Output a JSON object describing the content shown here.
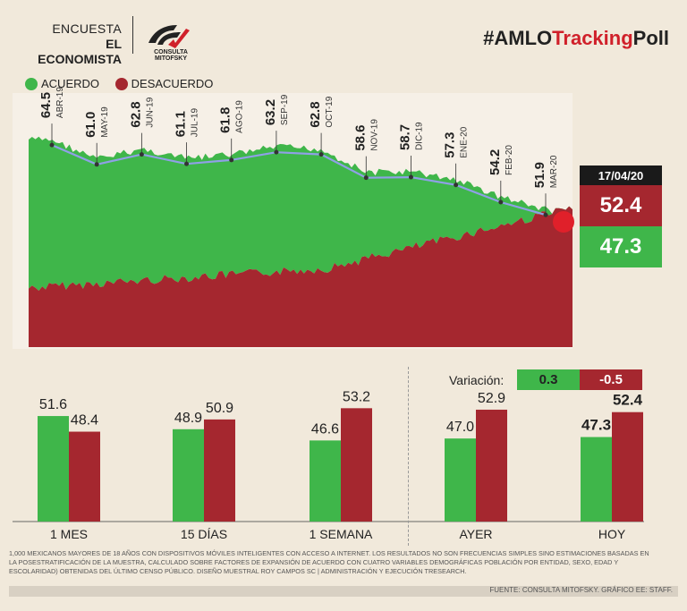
{
  "header": {
    "brand_line1": "ENCUESTA",
    "brand_line2": "EL ECONOMISTA",
    "logo_caption": "CONSULTA MITOFSKY",
    "hashtag_prefix": "#AMLO",
    "hashtag_highlight": "Tracking",
    "hashtag_suffix": "Poll"
  },
  "legend": {
    "acuerdo": "ACUERDO",
    "desacuerdo": "DESACUERDO"
  },
  "colors": {
    "green": "#3fb64a",
    "red": "#a5272f",
    "blue_line": "#8fa0e6",
    "background": "#f1e9db"
  },
  "current": {
    "date": "17/04/20",
    "desacuerdo": "52.4",
    "acuerdo": "47.3"
  },
  "variation": {
    "label": "Variación:",
    "acuerdo": "0.3",
    "desacuerdo": "-0.5"
  },
  "chart_data": [
    {
      "type": "area",
      "title": "AMLO Tracking Poll",
      "series": [
        {
          "name": "ACUERDO",
          "color": "#3fb64a"
        },
        {
          "name": "DESACUERDO",
          "color": "#a5272f"
        }
      ],
      "monthly_points": [
        {
          "label": "ABR-19",
          "value": 64.5
        },
        {
          "label": "MAY-19",
          "value": 61.0
        },
        {
          "label": "JUN-19",
          "value": 62.8
        },
        {
          "label": "JUL-19",
          "value": 61.1
        },
        {
          "label": "AGO-19",
          "value": 61.8
        },
        {
          "label": "SEP-19",
          "value": 63.2
        },
        {
          "label": "OCT-19",
          "value": 62.8
        },
        {
          "label": "NOV-19",
          "value": 58.6
        },
        {
          "label": "DIC-19",
          "value": 58.7
        },
        {
          "label": "ENE-20",
          "value": 57.3
        },
        {
          "label": "FEB-20",
          "value": 54.2
        },
        {
          "label": "MAR-20",
          "value": 51.9
        }
      ],
      "ylim": [
        30,
        70
      ]
    },
    {
      "type": "bar",
      "categories": [
        "1 MES",
        "15 DÍAS",
        "1 SEMANA",
        "AYER",
        "HOY"
      ],
      "series": [
        {
          "name": "ACUERDO",
          "values": [
            51.6,
            48.9,
            46.6,
            47.0,
            47.3
          ],
          "labels": [
            "51.6",
            "48.9",
            "46.6",
            "47.0",
            "47.3"
          ]
        },
        {
          "name": "DESACUERDO",
          "values": [
            48.4,
            50.9,
            53.2,
            52.9,
            52.4
          ],
          "labels": [
            "48.4",
            "50.9",
            "53.2",
            "52.9",
            "52.4"
          ]
        }
      ],
      "ylim": [
        30,
        60
      ]
    }
  ],
  "footnote": "1,000 MEXICANOS MAYORES DE 18 AÑOS CON DISPOSITIVOS MÓVILES INTELIGENTES CON ACCESO A INTERNET. LOS RESULTADOS NO SON FRECUENCIAS SIMPLES SINO ESTIMACIONES BASADAS EN LA POSESTRATIFICACIÓN DE LA MUESTRA, CALCULADO SOBRE FACTORES DE EXPANSIÓN DE ACUERDO CON CUATRO VARIABLES DEMOGRÁFICAS POBLACIÓN POR ENTIDAD, SEXO, EDAD Y ESCOLARIDAD) OBTENIDAS DEL ÚLTIMO CENSO PÚBLICO. DISEÑO MUESTRAL ROY CAMPOS SC | ADMINISTRACIÓN Y EJECUCIÓN TRESEARCH.",
  "source": "FUENTE: CONSULTA MITOFSKY. GRÁFICO EE: STAFF."
}
